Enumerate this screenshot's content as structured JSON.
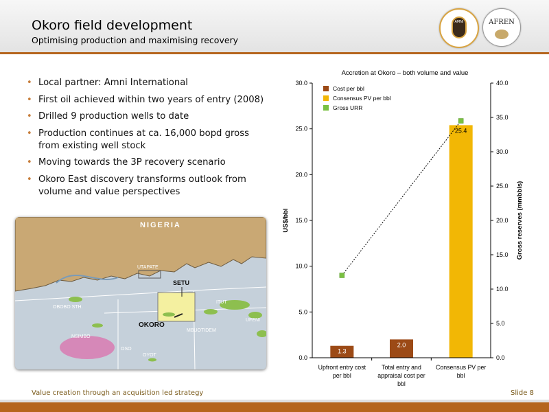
{
  "header": {
    "title": "Okoro field development",
    "subtitle": "Optimising production and maximising recovery",
    "logos": {
      "amni": "AMNI",
      "afren": "AFREN"
    }
  },
  "bullets": [
    "Local partner: Amni International",
    "First oil achieved within two years of entry (2008)",
    "Drilled 9 production wells to date",
    "Production continues at ca. 16,000 bopd gross from existing well stock",
    "Moving towards the 3P recovery scenario",
    "Okoro East discovery transforms outlook from volume and value perspectives"
  ],
  "map": {
    "country": "NIGERIA",
    "labels": {
      "utapate": "UTAPATE",
      "setu": "SETU",
      "obobo": "OBOBO STH.",
      "itut": "ITUT",
      "ufeni": "UFENI",
      "okoro": "OKORO",
      "mbuotidem": "MBUOTIDEM",
      "nsimbo": "NSIMBO",
      "oso": "OSO",
      "oyot": "OYOT"
    }
  },
  "chart_data": {
    "type": "bar",
    "title": "Accretion at Okoro – both volume and value",
    "ylabel": "US$/bbl",
    "y2label": "Gross reserves (mmbbls)",
    "ylim": [
      0,
      30
    ],
    "y2lim": [
      0,
      40
    ],
    "yticks": [
      "0.0",
      "5.0",
      "10.0",
      "15.0",
      "20.0",
      "25.0",
      "30.0"
    ],
    "y2ticks": [
      "0.0",
      "5.0",
      "10.0",
      "15.0",
      "20.0",
      "25.0",
      "30.0",
      "35.0",
      "40.0"
    ],
    "categories": [
      "Upfront entry cost per bbl",
      "Total entry and appraisal cost per bbl",
      "Consensus PV per bbl"
    ],
    "series": [
      {
        "name": "Cost per bbl",
        "type": "bar",
        "color": "#9c4a16",
        "values": [
          1.3,
          2.0,
          null
        ],
        "labels": [
          "1.3",
          "2.0",
          ""
        ]
      },
      {
        "name": "Consensus PV per bbl",
        "type": "bar",
        "color": "#f2b705",
        "values": [
          null,
          null,
          25.4
        ],
        "labels": [
          "",
          "",
          "25.4"
        ]
      },
      {
        "name": "Gross URR",
        "type": "line",
        "axis": "right",
        "color": "#7ac142",
        "x": [
          0,
          2
        ],
        "values": [
          12,
          34.5
        ]
      }
    ],
    "legend": "top-left"
  },
  "footer": {
    "text": "Value creation through an acquisition led strategy",
    "slide": "Slide 8"
  }
}
